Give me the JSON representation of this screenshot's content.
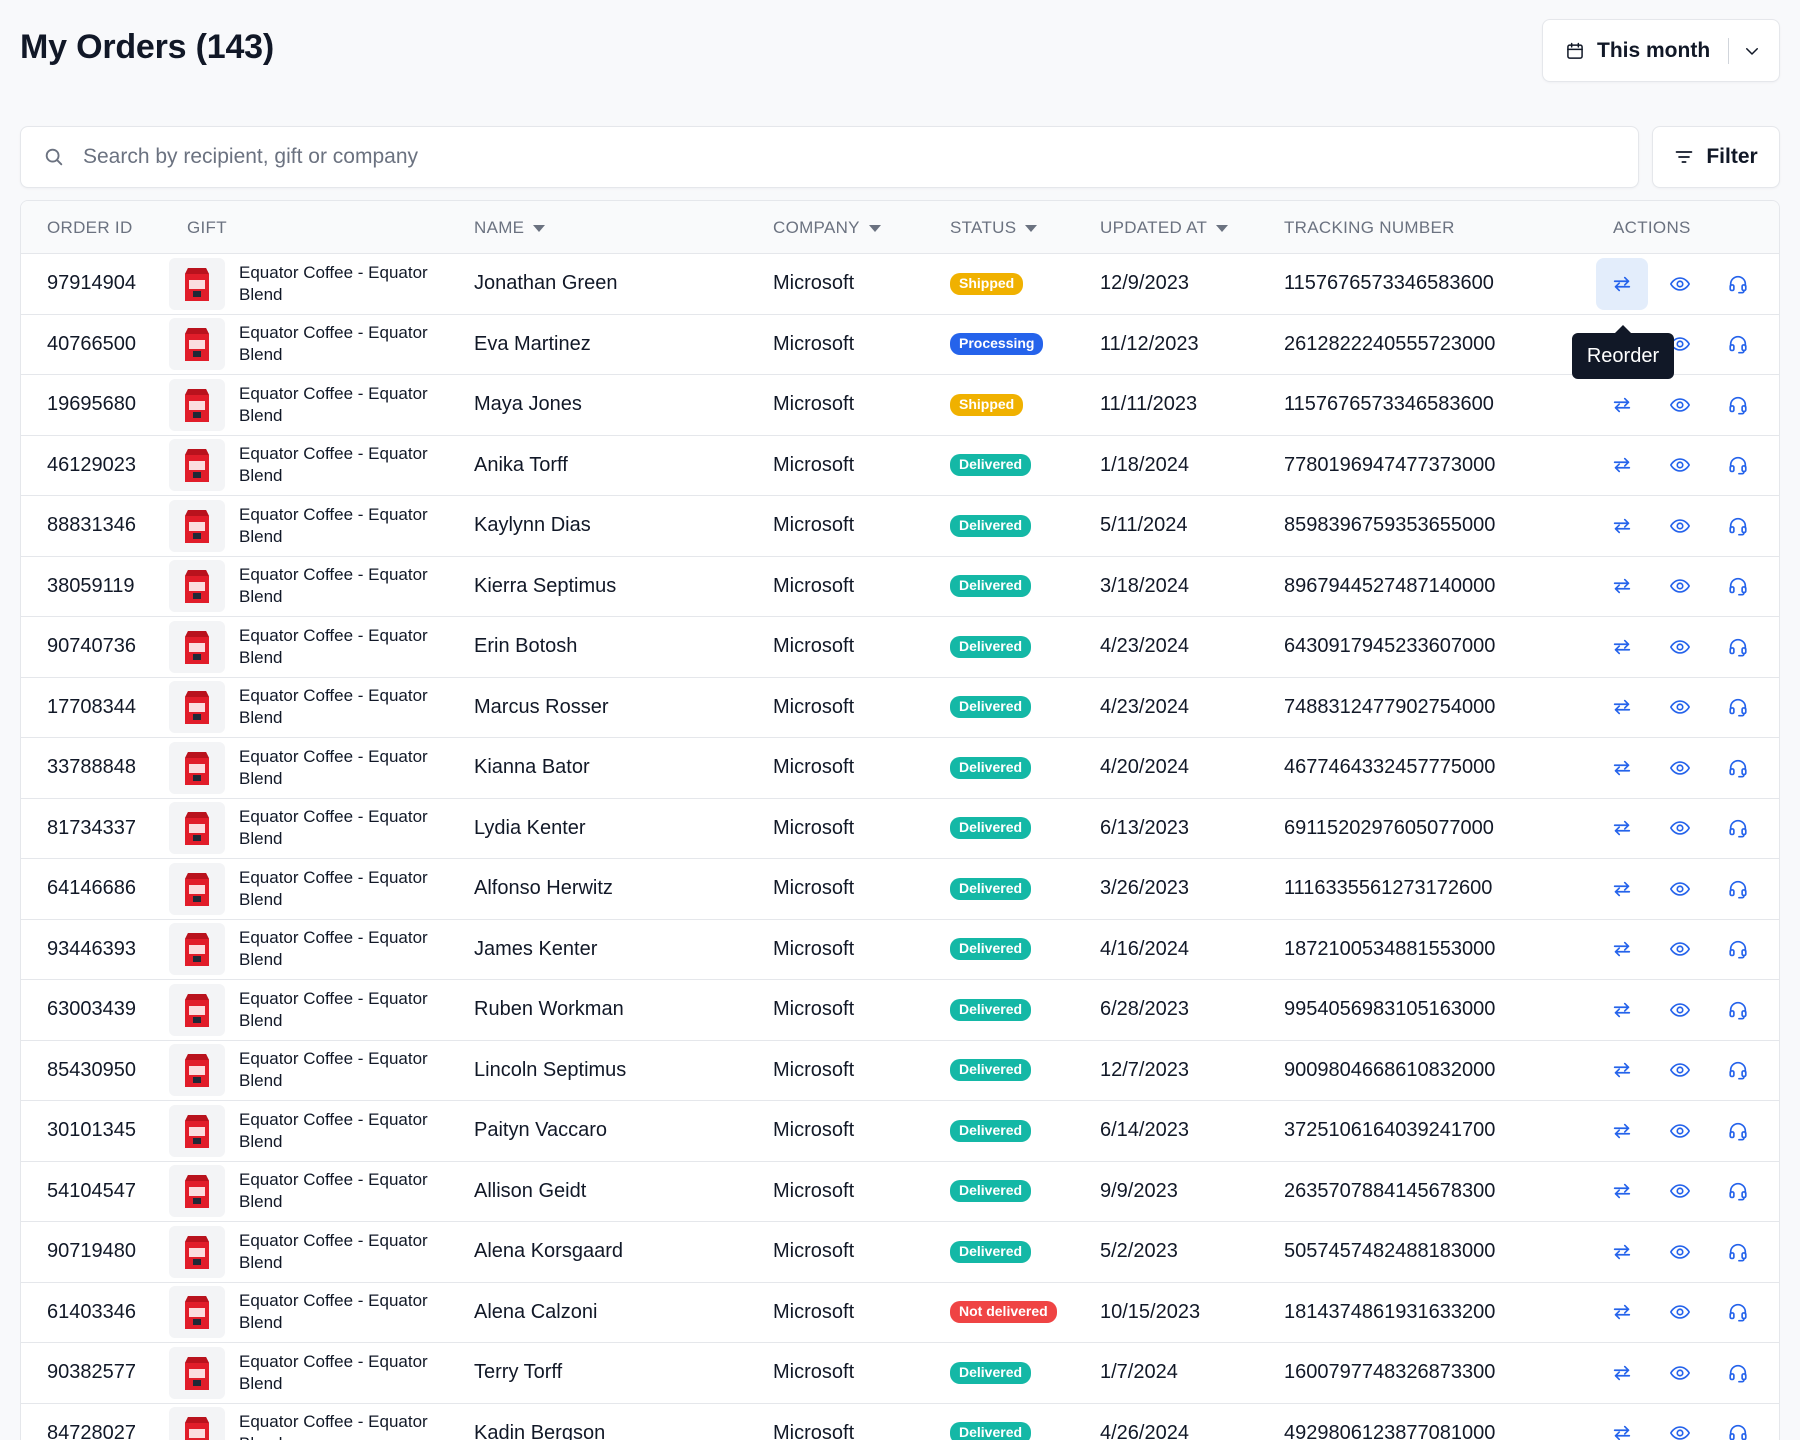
{
  "header": {
    "title": "My Orders (143)"
  },
  "date_filter": {
    "label": "This month",
    "icon": "calendar-icon",
    "chevron": "chevron-down-icon"
  },
  "search": {
    "placeholder": "Search by recipient, gift or company",
    "value": "",
    "icon": "search-icon"
  },
  "filter_button": {
    "label": "Filter",
    "icon": "filter-icon"
  },
  "table": {
    "columns": {
      "order_id": "ORDER ID",
      "gift": "GIFT",
      "name": "NAME",
      "company": "COMPANY",
      "status": "STATUS",
      "updated_at": "UPDATED AT",
      "tracking": "TRACKING NUMBER",
      "actions": "ACTIONS"
    },
    "rows": [
      {
        "order_id": "97914904",
        "gift": "Equator Coffee - Equator Blend",
        "name": "Jonathan Green",
        "company": "Microsoft",
        "status": "Shipped",
        "updated_at": "12/9/2023",
        "tracking": "1157676573346583600"
      },
      {
        "order_id": "40766500",
        "gift": "Equator Coffee - Equator Blend",
        "name": "Eva Martinez",
        "company": "Microsoft",
        "status": "Processing",
        "updated_at": "11/12/2023",
        "tracking": "2612822240555723000"
      },
      {
        "order_id": "19695680",
        "gift": "Equator Coffee - Equator Blend",
        "name": "Maya Jones",
        "company": "Microsoft",
        "status": "Shipped",
        "updated_at": "11/11/2023",
        "tracking": "1157676573346583600"
      },
      {
        "order_id": "46129023",
        "gift": "Equator Coffee - Equator Blend",
        "name": "Anika Torff",
        "company": "Microsoft",
        "status": "Delivered",
        "updated_at": "1/18/2024",
        "tracking": "7780196947477373000"
      },
      {
        "order_id": "88831346",
        "gift": "Equator Coffee - Equator Blend",
        "name": "Kaylynn Dias",
        "company": "Microsoft",
        "status": "Delivered",
        "updated_at": "5/11/2024",
        "tracking": "8598396759353655000"
      },
      {
        "order_id": "38059119",
        "gift": "Equator Coffee - Equator Blend",
        "name": "Kierra Septimus",
        "company": "Microsoft",
        "status": "Delivered",
        "updated_at": "3/18/2024",
        "tracking": "8967944527487140000"
      },
      {
        "order_id": "90740736",
        "gift": "Equator Coffee - Equator Blend",
        "name": "Erin Botosh",
        "company": "Microsoft",
        "status": "Delivered",
        "updated_at": "4/23/2024",
        "tracking": "6430917945233607000"
      },
      {
        "order_id": "17708344",
        "gift": "Equator Coffee - Equator Blend",
        "name": "Marcus Rosser",
        "company": "Microsoft",
        "status": "Delivered",
        "updated_at": "4/23/2024",
        "tracking": "7488312477902754000"
      },
      {
        "order_id": "33788848",
        "gift": "Equator Coffee - Equator Blend",
        "name": "Kianna Bator",
        "company": "Microsoft",
        "status": "Delivered",
        "updated_at": "4/20/2024",
        "tracking": "4677464332457775000"
      },
      {
        "order_id": "81734337",
        "gift": "Equator Coffee - Equator Blend",
        "name": "Lydia Kenter",
        "company": "Microsoft",
        "status": "Delivered",
        "updated_at": "6/13/2023",
        "tracking": "6911520297605077000"
      },
      {
        "order_id": "64146686",
        "gift": "Equator Coffee - Equator Blend",
        "name": "Alfonso Herwitz",
        "company": "Microsoft",
        "status": "Delivered",
        "updated_at": "3/26/2023",
        "tracking": "1116335561273172600"
      },
      {
        "order_id": "93446393",
        "gift": "Equator Coffee - Equator Blend",
        "name": "James Kenter",
        "company": "Microsoft",
        "status": "Delivered",
        "updated_at": "4/16/2024",
        "tracking": "1872100534881553000"
      },
      {
        "order_id": "63003439",
        "gift": "Equator Coffee - Equator Blend",
        "name": "Ruben Workman",
        "company": "Microsoft",
        "status": "Delivered",
        "updated_at": "6/28/2023",
        "tracking": "9954056983105163000"
      },
      {
        "order_id": "85430950",
        "gift": "Equator Coffee - Equator Blend",
        "name": "Lincoln Septimus",
        "company": "Microsoft",
        "status": "Delivered",
        "updated_at": "12/7/2023",
        "tracking": "9009804668610832000"
      },
      {
        "order_id": "30101345",
        "gift": "Equator Coffee - Equator Blend",
        "name": "Paityn Vaccaro",
        "company": "Microsoft",
        "status": "Delivered",
        "updated_at": "6/14/2023",
        "tracking": "3725106164039241700"
      },
      {
        "order_id": "54104547",
        "gift": "Equator Coffee - Equator Blend",
        "name": "Allison Geidt",
        "company": "Microsoft",
        "status": "Delivered",
        "updated_at": "9/9/2023",
        "tracking": "2635707884145678300"
      },
      {
        "order_id": "90719480",
        "gift": "Equator Coffee - Equator Blend",
        "name": "Alena Korsgaard",
        "company": "Microsoft",
        "status": "Delivered",
        "updated_at": "5/2/2023",
        "tracking": "5057457482488183000"
      },
      {
        "order_id": "61403346",
        "gift": "Equator Coffee - Equator Blend",
        "name": "Alena Calzoni",
        "company": "Microsoft",
        "status": "Not delivered",
        "updated_at": "10/15/2023",
        "tracking": "1814374861931633200"
      },
      {
        "order_id": "90382577",
        "gift": "Equator Coffee - Equator Blend",
        "name": "Terry Torff",
        "company": "Microsoft",
        "status": "Delivered",
        "updated_at": "1/7/2024",
        "tracking": "1600797748326873300"
      },
      {
        "order_id": "84728027",
        "gift": "Equator Coffee - Equator Blend",
        "name": "Kadin Bergson",
        "company": "Microsoft",
        "status": "Delivered",
        "updated_at": "4/26/2024",
        "tracking": "4929806123877081000"
      }
    ]
  },
  "status_colors": {
    "Shipped": "#f0b100",
    "Processing": "#2563eb",
    "Delivered": "#14b8a6",
    "Not delivered": "#ef4444"
  },
  "action_icons": [
    "reorder-icon",
    "view-icon",
    "support-icon"
  ],
  "tooltip": {
    "label": "Reorder"
  },
  "colors": {
    "accent": "#2563eb",
    "action_active_bg": "#e3edfb"
  }
}
